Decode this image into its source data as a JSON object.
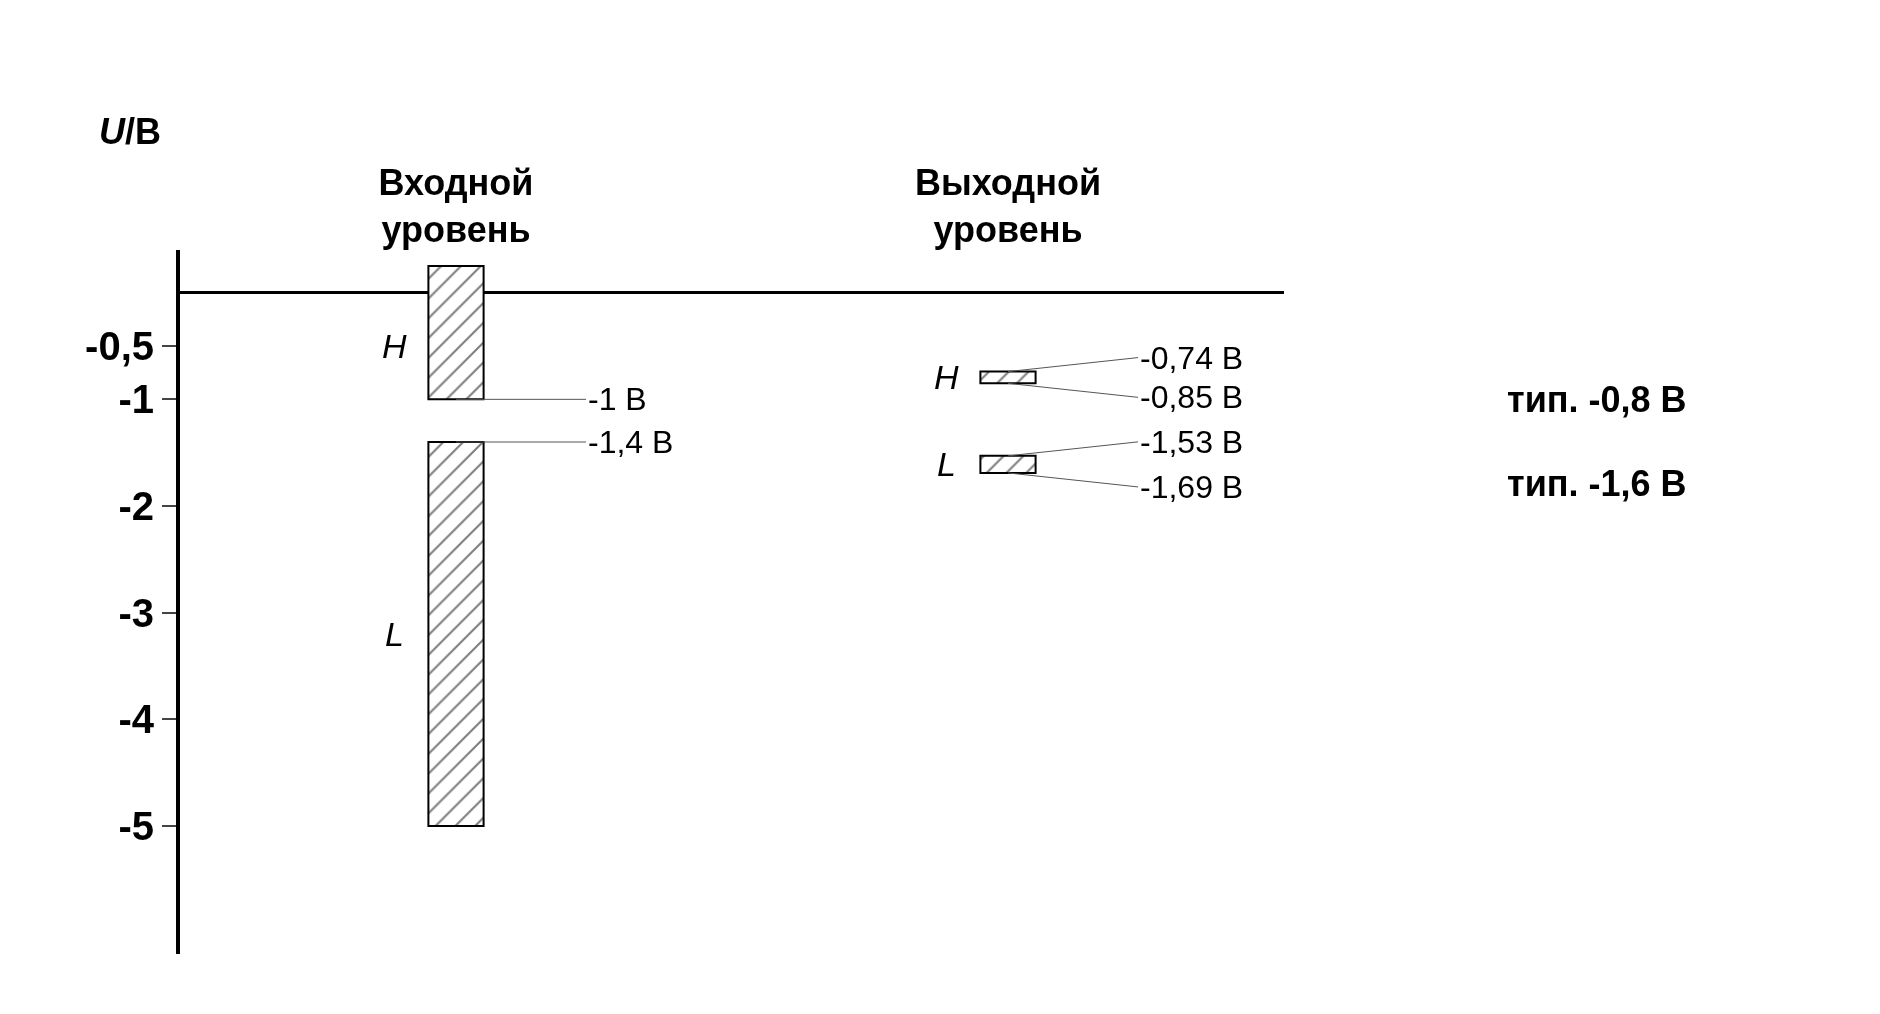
{
  "chart_data": {
    "type": "bar",
    "ylabel": "U/В",
    "categories": [
      "Входной\nуровень",
      "Выходной\nуровень"
    ],
    "series": [
      {
        "name": "H",
        "color": "#000000",
        "base": [
          -1,
          -0.85
        ],
        "values": [
          1.25,
          0.11
        ]
      },
      {
        "name": "L",
        "color": "#000000",
        "base": [
          -5,
          -1.69
        ],
        "values": [
          3.6,
          0.16
        ]
      }
    ],
    "ylim": [
      -6.2,
      0.4
    ],
    "yticks": [
      {
        "value": -0.5,
        "label": "-0,5"
      },
      -1,
      -2,
      -3,
      -4,
      -5
    ],
    "annotations": [
      {
        "text": "-1 В",
        "x": "Входной\nуровень",
        "y": -1
      },
      {
        "text": "-1,4 В",
        "x": "Входной\nуровень",
        "y": -1.4
      },
      {
        "text": "-0,74 В",
        "x": "Выходной\nуровень",
        "y": -0.74
      },
      {
        "text": "-0,85 В",
        "x": "Выходной\nуровень",
        "y": -0.85
      },
      {
        "text": "-1,53 В",
        "x": "Выходной\nуровень",
        "y": -1.53
      },
      {
        "text": "-1,69 В",
        "x": "Выходной\nуровень",
        "y": -1.69
      },
      "тип. -0,8 В",
      "тип. -1,6 В"
    ],
    "legend": false
  }
}
